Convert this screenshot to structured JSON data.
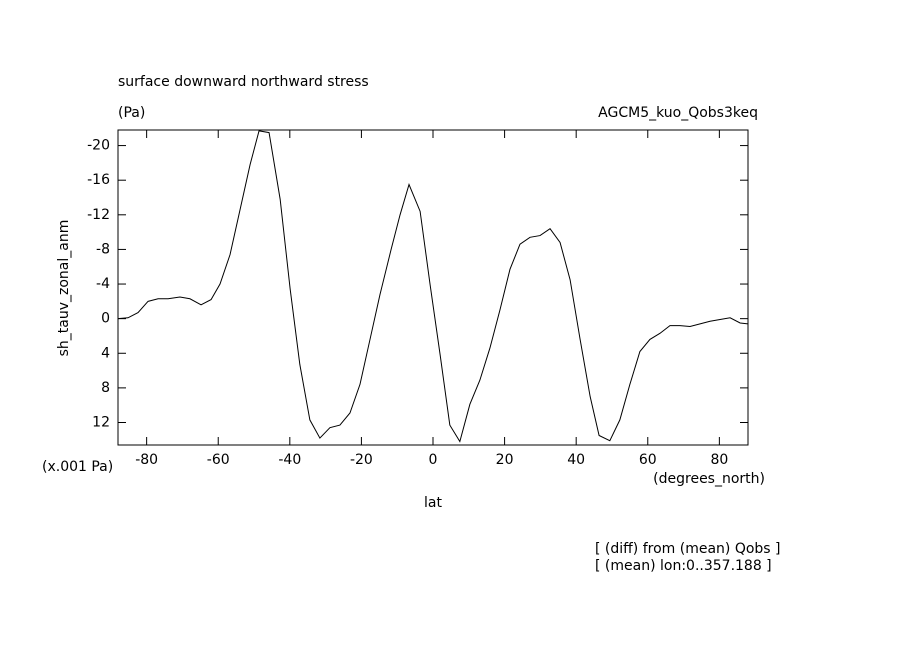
{
  "chart_data": {
    "type": "line",
    "title": "surface downward northward stress",
    "units": "(Pa)",
    "subtitle_right": "AGCM5_kuo_Qobs3keq",
    "y_label": "sh_tauv_zonal_anm",
    "y_scale_label": "(x.001 Pa)",
    "x_label": "lat",
    "x_units": "(degrees_north)",
    "notes": [
      "[ (diff) from (mean) Qobs ]",
      "[ (mean) lon:0..357.188 ]"
    ],
    "xlim": [
      -88,
      88
    ],
    "ylim": [
      14.6,
      -21.8
    ],
    "xticks": [
      -80,
      -60,
      -40,
      -20,
      0,
      20,
      40,
      60,
      80
    ],
    "yticks": [
      -20,
      -16,
      -12,
      -8,
      -4,
      0,
      4,
      8,
      12
    ],
    "x": [
      -88.0,
      -85.2,
      -82.4,
      -79.6,
      -76.8,
      -74.0,
      -70.7,
      -67.9,
      -64.8,
      -62.0,
      -59.5,
      -56.7,
      -53.9,
      -51.1,
      -48.6,
      -45.8,
      -42.7,
      -39.9,
      -37.2,
      -34.4,
      -31.6,
      -28.8,
      -26.0,
      -23.2,
      -20.4,
      -17.6,
      -14.8,
      -11.7,
      -9.2,
      -6.7,
      -3.6,
      -0.8,
      2.0,
      4.7,
      7.5,
      10.3,
      13.1,
      15.9,
      18.7,
      21.5,
      24.3,
      27.1,
      29.9,
      32.7,
      35.5,
      38.3,
      41.1,
      43.9,
      46.4,
      49.4,
      52.2,
      55.0,
      57.8,
      60.6,
      63.4,
      66.2,
      69.0,
      71.8,
      74.6,
      77.4,
      80.2,
      83.0,
      85.8,
      88.0
    ],
    "series": [
      {
        "color": "#000000",
        "values": [
          0,
          -0.1,
          -0.7,
          -2,
          -2.3,
          -2.3,
          -2.5,
          -2.3,
          -1.6,
          -2.2,
          -4,
          -7.4,
          -12.6,
          -17.8,
          -21.7,
          -21.5,
          -13.8,
          -3.4,
          5.3,
          11.7,
          13.8,
          12.6,
          12.3,
          10.9,
          7.6,
          2.4,
          -2.8,
          -8,
          -12,
          -15.5,
          -12.4,
          -3.9,
          4.2,
          12.3,
          14.2,
          9.9,
          7.1,
          3.4,
          -1,
          -5.7,
          -8.6,
          -9.4,
          -9.6,
          -10.4,
          -8.8,
          -4.5,
          2.4,
          9,
          13.5,
          14.1,
          11.7,
          7.6,
          3.8,
          2.4,
          1.7,
          0.8,
          0.8,
          0.9,
          0.6,
          0.3,
          0.1,
          -0.1,
          0.5,
          0.6
        ]
      }
    ]
  }
}
